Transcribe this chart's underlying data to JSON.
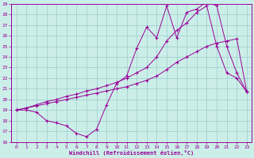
{
  "xlabel": "Windchill (Refroidissement éolien,°C)",
  "xlim": [
    -0.5,
    23.5
  ],
  "ylim": [
    16,
    29
  ],
  "xticks": [
    0,
    1,
    2,
    3,
    4,
    5,
    6,
    7,
    8,
    9,
    10,
    11,
    12,
    13,
    14,
    15,
    16,
    17,
    18,
    19,
    20,
    21,
    22,
    23
  ],
  "yticks": [
    16,
    17,
    18,
    19,
    20,
    21,
    22,
    23,
    24,
    25,
    26,
    27,
    28,
    29
  ],
  "background_color": "#cceee8",
  "line_color": "#990099",
  "grid_color": "#99cccc",
  "line1_x": [
    0,
    1,
    2,
    3,
    4,
    5,
    6,
    7,
    8,
    9,
    10,
    11,
    12,
    13,
    14,
    15,
    16,
    17,
    18,
    19,
    20,
    21,
    22,
    23
  ],
  "line1_y": [
    19.0,
    19.0,
    18.8,
    18.0,
    17.8,
    17.5,
    16.8,
    16.5,
    17.2,
    19.5,
    21.5,
    22.2,
    24.8,
    26.8,
    25.8,
    28.8,
    25.8,
    28.2,
    28.5,
    29.2,
    28.8,
    25.0,
    22.5,
    20.7
  ],
  "line2_x": [
    0,
    1,
    2,
    3,
    4,
    5,
    6,
    7,
    8,
    9,
    10,
    11,
    12,
    13,
    14,
    15,
    16,
    17,
    18,
    19,
    20,
    21,
    22,
    23
  ],
  "line2_y": [
    19.0,
    19.2,
    19.5,
    19.8,
    20.0,
    20.3,
    20.5,
    20.8,
    21.0,
    21.3,
    21.6,
    22.0,
    22.5,
    23.0,
    24.0,
    25.5,
    26.5,
    27.2,
    28.2,
    28.8,
    25.0,
    22.5,
    22.0,
    20.7
  ],
  "line3_x": [
    0,
    1,
    2,
    3,
    4,
    5,
    6,
    7,
    8,
    9,
    10,
    11,
    12,
    13,
    14,
    15,
    16,
    17,
    18,
    19,
    20,
    21,
    22,
    23
  ],
  "line3_y": [
    19.0,
    19.2,
    19.4,
    19.6,
    19.8,
    20.0,
    20.2,
    20.4,
    20.6,
    20.8,
    21.0,
    21.2,
    21.5,
    21.8,
    22.2,
    22.8,
    23.5,
    24.0,
    24.5,
    25.0,
    25.3,
    25.5,
    25.7,
    20.7
  ]
}
